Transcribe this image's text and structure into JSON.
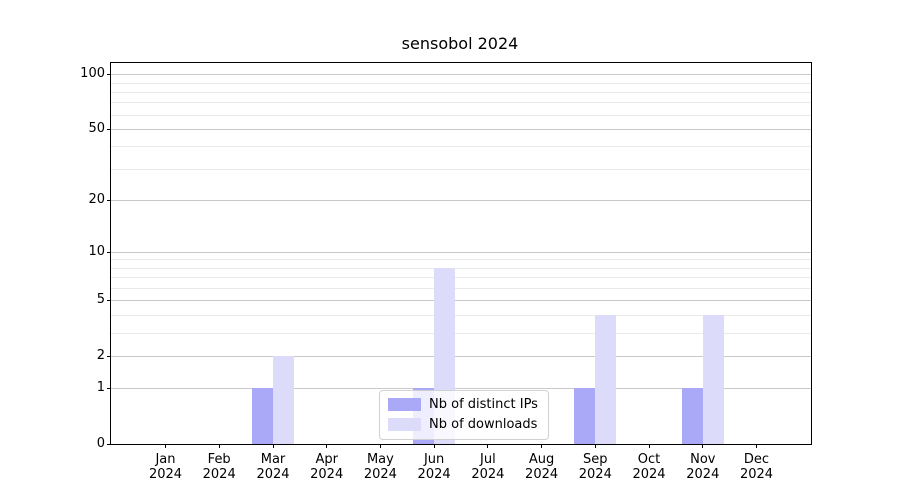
{
  "title": "sensobol 2024",
  "chart_data": {
    "type": "bar",
    "title": "sensobol 2024",
    "xlabel": "",
    "ylabel": "",
    "y_scale": "log1p",
    "ylim": [
      0,
      115
    ],
    "categories": [
      {
        "month": "Jan",
        "year": "2024"
      },
      {
        "month": "Feb",
        "year": "2024"
      },
      {
        "month": "Mar",
        "year": "2024"
      },
      {
        "month": "Apr",
        "year": "2024"
      },
      {
        "month": "May",
        "year": "2024"
      },
      {
        "month": "Jun",
        "year": "2024"
      },
      {
        "month": "Jul",
        "year": "2024"
      },
      {
        "month": "Aug",
        "year": "2024"
      },
      {
        "month": "Sep",
        "year": "2024"
      },
      {
        "month": "Oct",
        "year": "2024"
      },
      {
        "month": "Nov",
        "year": "2024"
      },
      {
        "month": "Dec",
        "year": "2024"
      }
    ],
    "series": [
      {
        "name": "Nb of distinct IPs",
        "color": "#a9a9f7",
        "values": [
          0,
          0,
          1,
          0,
          0,
          1,
          0,
          0,
          1,
          0,
          1,
          0
        ]
      },
      {
        "name": "Nb of downloads",
        "color": "#dcdcfa",
        "values": [
          0,
          0,
          2,
          0,
          0,
          8,
          0,
          0,
          4,
          0,
          4,
          0
        ]
      }
    ],
    "yticks": [
      100,
      50,
      20,
      10,
      5,
      2,
      1,
      0
    ],
    "grid": {
      "major_values": [
        1,
        2,
        5,
        10,
        20,
        50,
        100
      ],
      "minor_values": [
        3,
        4,
        6,
        7,
        8,
        9,
        30,
        40,
        60,
        70,
        80,
        90
      ]
    },
    "legend_position": "lower center"
  },
  "colors": {
    "grid_major": "#c9c9c9",
    "grid_minor": "#eaeaea",
    "axis": "#000000",
    "background": "#ffffff"
  }
}
